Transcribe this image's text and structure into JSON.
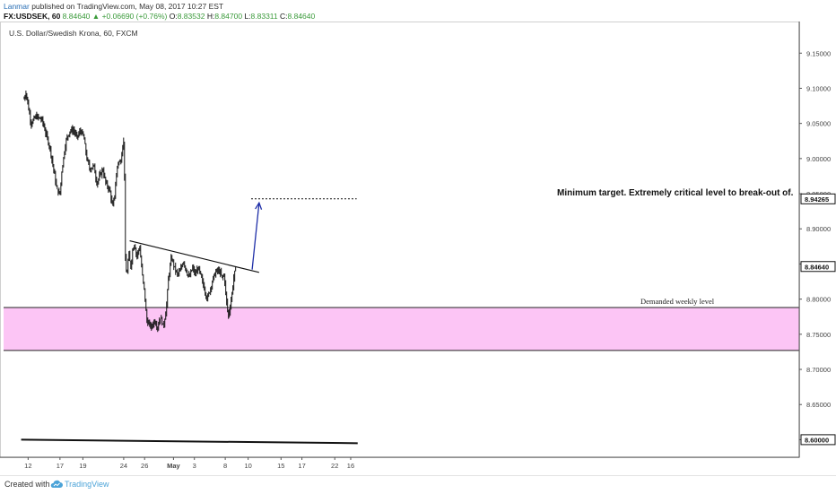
{
  "header": {
    "author": "Lanmar",
    "published": "published on TradingView.com, May 08, 2017 10:27 EST",
    "symbol": "FX:USDSEK, 60",
    "last": "8.84640",
    "change": "+0.06690 (+0.76%)",
    "open_label": "O:",
    "open": "8.83532",
    "high_label": "H:",
    "high": "8.84700",
    "low_label": "L:",
    "low": "8.83311",
    "close_label": "C:",
    "close": "8.84640"
  },
  "chart_data": {
    "type": "candlestick",
    "title": "U.S. Dollar/Swedish Krona, 60, FXCM",
    "xlabel": "",
    "ylabel": "",
    "ylim": [
      8.575,
      9.195
    ],
    "y_ticks": [
      "9.15000",
      "9.10000",
      "9.05000",
      "9.00000",
      "8.95000",
      "8.90000",
      "8.85000",
      "8.80000",
      "8.75000",
      "8.70000",
      "8.65000",
      "8.60000"
    ],
    "x_ticks": [
      "12",
      "17",
      "19",
      "24",
      "26",
      "May",
      "3",
      "8",
      "10",
      "15",
      "17",
      "22",
      "16"
    ],
    "x_tick_days": [
      -0.6,
      2.6,
      4.9,
      9.0,
      11.1,
      14.0,
      16.1,
      19.2,
      21.5,
      24.8,
      26.9,
      30.2,
      31.8
    ],
    "price_marker": "8.84640",
    "target_marker": "8.94265",
    "bottom_marker": "8.60000",
    "price_path": [
      [
        -1.0,
        9.085
      ],
      [
        -0.8,
        9.095
      ],
      [
        -0.6,
        9.075
      ],
      [
        -0.3,
        9.05
      ],
      [
        0.2,
        9.06
      ],
      [
        0.8,
        9.055
      ],
      [
        1.2,
        9.035
      ],
      [
        1.6,
        9.015
      ],
      [
        1.9,
        8.99
      ],
      [
        2.3,
        8.955
      ],
      [
        2.6,
        8.95
      ],
      [
        2.8,
        8.985
      ],
      [
        3.2,
        9.025
      ],
      [
        3.6,
        9.04
      ],
      [
        4.0,
        9.04
      ],
      [
        4.3,
        9.03
      ],
      [
        4.7,
        9.04
      ],
      [
        5.0,
        9.03
      ],
      [
        5.3,
        9.0
      ],
      [
        5.6,
        8.985
      ],
      [
        6.0,
        8.99
      ],
      [
        6.3,
        8.965
      ],
      [
        6.6,
        8.975
      ],
      [
        6.9,
        8.985
      ],
      [
        7.2,
        8.965
      ],
      [
        7.6,
        8.955
      ],
      [
        7.9,
        8.93
      ],
      [
        8.1,
        8.95
      ],
      [
        8.4,
        8.995
      ],
      [
        8.7,
        8.995
      ],
      [
        8.9,
        9.02
      ],
      [
        9.05,
        9.025
      ],
      [
        9.15,
        8.86
      ],
      [
        9.3,
        8.83
      ],
      [
        9.5,
        8.865
      ],
      [
        9.7,
        8.845
      ],
      [
        9.9,
        8.87
      ],
      [
        10.1,
        8.88
      ],
      [
        10.3,
        8.86
      ],
      [
        10.6,
        8.875
      ],
      [
        10.9,
        8.83
      ],
      [
        11.1,
        8.81
      ],
      [
        11.3,
        8.77
      ],
      [
        11.5,
        8.765
      ],
      [
        11.8,
        8.76
      ],
      [
        12.1,
        8.77
      ],
      [
        12.4,
        8.76
      ],
      [
        12.7,
        8.775
      ],
      [
        13.0,
        8.76
      ],
      [
        13.3,
        8.79
      ],
      [
        13.5,
        8.83
      ],
      [
        13.8,
        8.86
      ],
      [
        14.1,
        8.845
      ],
      [
        14.4,
        8.835
      ],
      [
        14.7,
        8.84
      ],
      [
        15.0,
        8.855
      ],
      [
        15.3,
        8.84
      ],
      [
        15.6,
        8.83
      ],
      [
        15.9,
        8.845
      ],
      [
        16.2,
        8.835
      ],
      [
        16.5,
        8.845
      ],
      [
        16.8,
        8.83
      ],
      [
        17.1,
        8.815
      ],
      [
        17.4,
        8.8
      ],
      [
        17.7,
        8.815
      ],
      [
        18.0,
        8.83
      ],
      [
        18.3,
        8.84
      ],
      [
        18.6,
        8.84
      ],
      [
        18.9,
        8.83
      ],
      [
        19.1,
        8.835
      ],
      [
        19.3,
        8.8
      ],
      [
        19.5,
        8.775
      ],
      [
        19.7,
        8.79
      ],
      [
        19.9,
        8.81
      ],
      [
        20.1,
        8.835
      ],
      [
        20.3,
        8.846
      ]
    ],
    "annotations": {
      "zone_label": "Demanded weekly level",
      "target_label": "Minimum target. Extremely critical level to break-out of."
    },
    "zone": {
      "upper": 8.788,
      "lower": 8.727,
      "color": "#fcc5f5"
    },
    "trendline": {
      "start": [
        9.6,
        8.883
      ],
      "end": [
        22.6,
        8.838
      ]
    },
    "target_line": {
      "start": [
        21.8,
        8.94265
      ],
      "end": [
        32.4,
        8.94265
      ]
    },
    "arrow": {
      "start": [
        21.9,
        8.842
      ],
      "end": [
        22.6,
        8.937
      ],
      "color": "#1f2fa8"
    },
    "bottom_line": {
      "start": [
        -1.3,
        8.6
      ],
      "end": [
        32.5,
        8.595
      ]
    },
    "grid": false,
    "legend": "none"
  },
  "footer": {
    "created_with": "Created with",
    "brand": "TradingView"
  }
}
